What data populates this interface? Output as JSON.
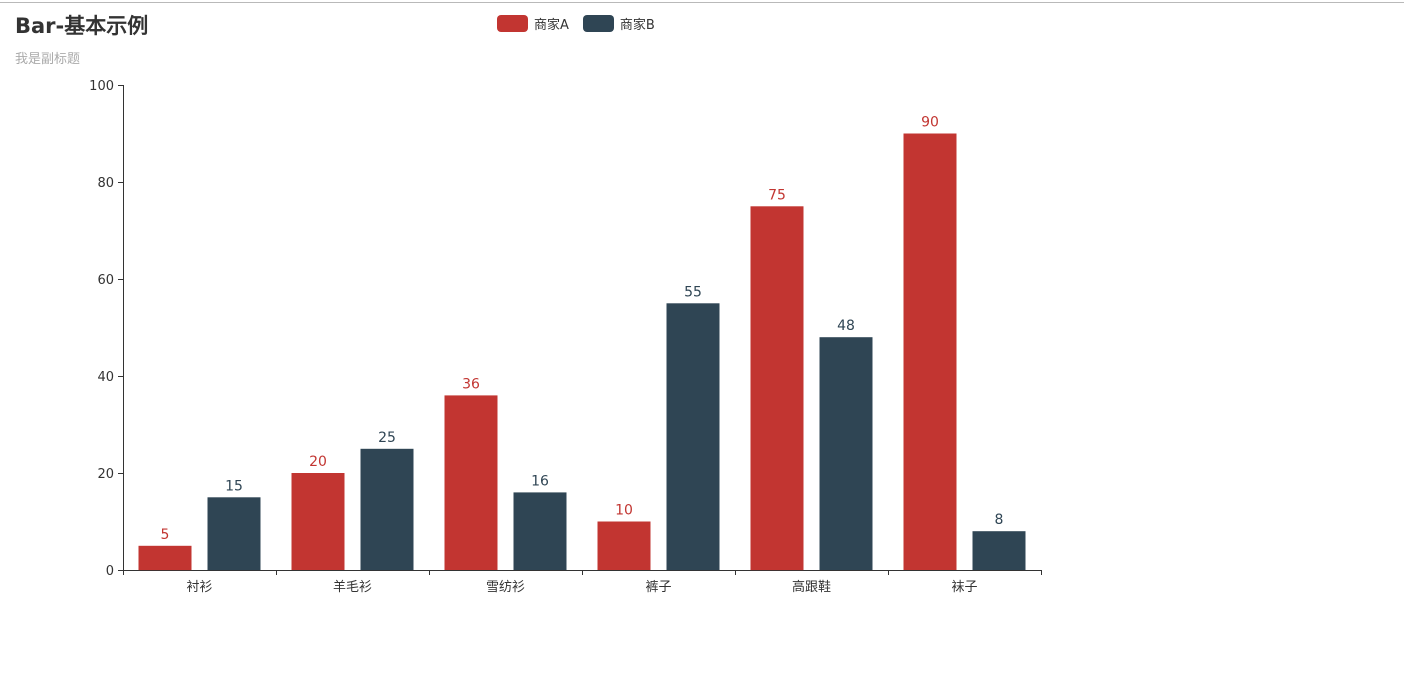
{
  "chart_data": {
    "type": "bar",
    "title": "Bar-基本示例",
    "subtitle": "我是副标题",
    "categories": [
      "衬衫",
      "羊毛衫",
      "雪纺衫",
      "裤子",
      "高跟鞋",
      "袜子"
    ],
    "series": [
      {
        "name": "商家A",
        "values": [
          5,
          20,
          36,
          10,
          75,
          90
        ],
        "color": "#c23531"
      },
      {
        "name": "商家B",
        "values": [
          15,
          25,
          16,
          55,
          48,
          8
        ],
        "color": "#2f4554"
      }
    ],
    "ylim": [
      0,
      100
    ],
    "y_ticks": [
      "0",
      "20",
      "40",
      "60",
      "80",
      "100"
    ],
    "grid": false,
    "legend_position": "top-center",
    "data_labels": true
  }
}
